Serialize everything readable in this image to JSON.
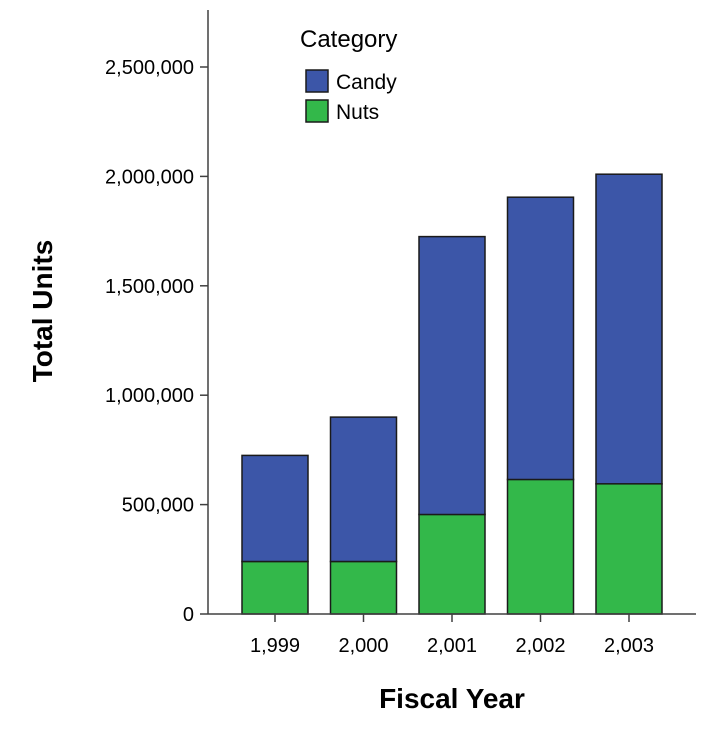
{
  "chart_data": {
    "type": "bar",
    "stacked": true,
    "categories": [
      "1,999",
      "2,000",
      "2,001",
      "2,002",
      "2,003"
    ],
    "series": [
      {
        "name": "Nuts",
        "color": "#33b84a",
        "values": [
          240000,
          240000,
          455000,
          615000,
          595000
        ]
      },
      {
        "name": "Candy",
        "color": "#3c56a8",
        "values": [
          485000,
          660000,
          1270000,
          1290000,
          1415000
        ]
      }
    ],
    "xlabel": "Fiscal Year",
    "ylabel": "Total Units",
    "ylim": [
      0,
      2750000
    ],
    "yticks": [
      0,
      500000,
      1000000,
      1500000,
      2000000,
      2500000
    ],
    "ytick_labels": [
      "0",
      "500,000",
      "1,000,000",
      "1,500,000",
      "2,000,000",
      "2,500,000"
    ],
    "grid": false,
    "legend": {
      "title": "Category",
      "position": "top-center",
      "entries": [
        {
          "label": "Candy",
          "color": "#3c56a8"
        },
        {
          "label": "Nuts",
          "color": "#33b84a"
        }
      ]
    }
  }
}
